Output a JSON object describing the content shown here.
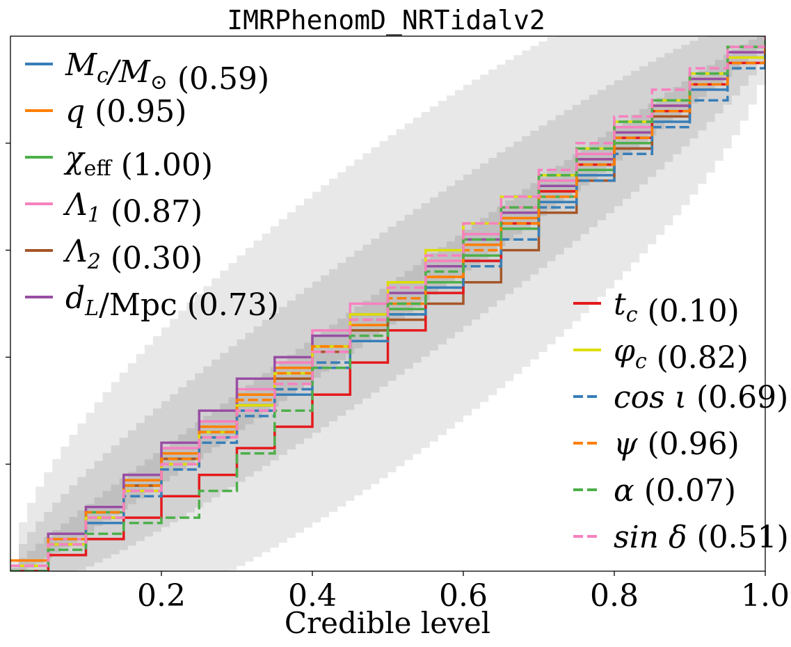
{
  "chart_data": {
    "type": "line",
    "title": "IMRPhenomD_NRTidalv2",
    "xlabel": "Credible level",
    "ylabel": "",
    "xlim": [
      0,
      1
    ],
    "ylim": [
      0,
      1
    ],
    "x_ticks": [
      {
        "value": 0.2,
        "label": "0.2"
      },
      {
        "value": 0.4,
        "label": "0.4"
      },
      {
        "value": 0.6,
        "label": "0.6"
      },
      {
        "value": 0.8,
        "label": "0.8"
      },
      {
        "value": 1.0,
        "label": "1.0"
      }
    ],
    "y_ticks": [
      0.2,
      0.4,
      0.6,
      0.8
    ],
    "grid": false,
    "confidence_bands": [
      {
        "sigma": 1,
        "color": "#bfbfbf",
        "halfwidth_scale": 0.022
      },
      {
        "sigma": 2,
        "color": "#d2d2d2",
        "halfwidth_scale": 0.044
      },
      {
        "sigma": 3,
        "color": "#e8e8e8",
        "halfwidth_scale": 0.066
      }
    ],
    "legends": [
      {
        "placement": "upper-left",
        "entries": [
          {
            "math": "M_c/M_⊙",
            "name_main": "M",
            "name_sub": "c",
            "name_tail": "/M",
            "name_tail_sub": "⊙",
            "pvalue": "(0.59)",
            "color": "#377eb8",
            "dash": "solid"
          },
          {
            "math": "q",
            "name_main": "q",
            "name_sub": "",
            "name_tail": "",
            "name_tail_sub": "",
            "pvalue": "(0.95)",
            "color": "#ff7f00",
            "dash": "solid"
          },
          {
            "math": "χ_eff",
            "name_main": "χ",
            "name_sub": "eff",
            "name_tail": "",
            "name_tail_sub": "",
            "pvalue": "(1.00)",
            "color": "#4daf4a",
            "dash": "solid"
          },
          {
            "math": "Λ_1",
            "name_main": "Λ",
            "name_sub": "1",
            "name_tail": "",
            "name_tail_sub": "",
            "pvalue": "(0.87)",
            "color": "#f781bf",
            "dash": "solid"
          },
          {
            "math": "Λ_2",
            "name_main": "Λ",
            "name_sub": "2",
            "name_tail": "",
            "name_tail_sub": "",
            "pvalue": "(0.30)",
            "color": "#a65628",
            "dash": "solid"
          },
          {
            "math": "d_L/Mpc",
            "name_main": "d",
            "name_sub": "L",
            "name_tail": "/Mpc",
            "name_tail_sub": "",
            "pvalue": "(0.73)",
            "color": "#984ea3",
            "dash": "solid"
          }
        ]
      },
      {
        "placement": "lower-right",
        "entries": [
          {
            "math": "t_c",
            "name_main": "t",
            "name_sub": "c",
            "name_tail": "",
            "name_tail_sub": "",
            "pvalue": "(0.10)",
            "color": "#e41a1c",
            "dash": "solid"
          },
          {
            "math": "φ_c",
            "name_main": "φ",
            "name_sub": "c",
            "name_tail": "",
            "name_tail_sub": "",
            "pvalue": "(0.82)",
            "color": "#dede00",
            "dash": "solid"
          },
          {
            "math": "cos ι",
            "name_main": "cos ι",
            "name_sub": "",
            "name_tail": "",
            "name_tail_sub": "",
            "pvalue": "(0.69)",
            "color": "#377eb8",
            "dash": "dashed"
          },
          {
            "math": "ψ",
            "name_main": "ψ",
            "name_sub": "",
            "name_tail": "",
            "name_tail_sub": "",
            "pvalue": "(0.96)",
            "color": "#ff7f00",
            "dash": "dashed"
          },
          {
            "math": "α",
            "name_main": "α",
            "name_sub": "",
            "name_tail": "",
            "name_tail_sub": "",
            "pvalue": "(0.07)",
            "color": "#4daf4a",
            "dash": "dashed"
          },
          {
            "math": "sin δ",
            "name_main": "sin δ",
            "name_sub": "",
            "name_tail": "",
            "name_tail_sub": "",
            "pvalue": "(0.51)",
            "color": "#f781bf",
            "dash": "dashed"
          }
        ]
      }
    ],
    "series": [
      {
        "name": "M_c/M_⊙",
        "color": "#377eb8",
        "dash": "solid",
        "x": [
          0,
          0.05,
          0.1,
          0.15,
          0.2,
          0.25,
          0.3,
          0.35,
          0.4,
          0.45,
          0.5,
          0.55,
          0.6,
          0.65,
          0.7,
          0.75,
          0.8,
          0.85,
          0.9,
          0.95,
          1
        ],
        "y": [
          0,
          0.05,
          0.09,
          0.15,
          0.2,
          0.25,
          0.3,
          0.33,
          0.38,
          0.43,
          0.48,
          0.53,
          0.58,
          0.64,
          0.69,
          0.74,
          0.79,
          0.84,
          0.9,
          0.96,
          1
        ]
      },
      {
        "name": "q",
        "color": "#ff7f00",
        "dash": "solid",
        "x": [
          0,
          0.05,
          0.1,
          0.15,
          0.2,
          0.25,
          0.3,
          0.35,
          0.4,
          0.45,
          0.5,
          0.55,
          0.6,
          0.65,
          0.7,
          0.75,
          0.8,
          0.85,
          0.9,
          0.95,
          1
        ],
        "y": [
          0.02,
          0.07,
          0.12,
          0.17,
          0.22,
          0.27,
          0.33,
          0.38,
          0.42,
          0.46,
          0.5,
          0.55,
          0.61,
          0.66,
          0.71,
          0.77,
          0.82,
          0.87,
          0.92,
          0.96,
          1
        ]
      },
      {
        "name": "χ_eff",
        "color": "#4daf4a",
        "dash": "solid",
        "x": [
          0,
          0.05,
          0.1,
          0.15,
          0.2,
          0.25,
          0.3,
          0.35,
          0.4,
          0.45,
          0.5,
          0.55,
          0.6,
          0.65,
          0.7,
          0.75,
          0.8,
          0.85,
          0.9,
          0.95,
          1
        ],
        "y": [
          0.01,
          0.06,
          0.11,
          0.16,
          0.21,
          0.26,
          0.31,
          0.36,
          0.41,
          0.45,
          0.49,
          0.54,
          0.59,
          0.64,
          0.7,
          0.75,
          0.8,
          0.86,
          0.91,
          0.96,
          1
        ]
      },
      {
        "name": "Λ_1",
        "color": "#f781bf",
        "dash": "solid",
        "x": [
          0,
          0.05,
          0.1,
          0.15,
          0.2,
          0.25,
          0.3,
          0.35,
          0.4,
          0.45,
          0.5,
          0.55,
          0.6,
          0.65,
          0.7,
          0.75,
          0.8,
          0.85,
          0.9,
          0.95,
          1
        ],
        "y": [
          0.01,
          0.06,
          0.12,
          0.18,
          0.23,
          0.28,
          0.34,
          0.39,
          0.45,
          0.5,
          0.54,
          0.58,
          0.63,
          0.68,
          0.73,
          0.78,
          0.83,
          0.88,
          0.93,
          0.97,
          1
        ]
      },
      {
        "name": "Λ_2",
        "color": "#a65628",
        "dash": "solid",
        "x": [
          0,
          0.05,
          0.1,
          0.15,
          0.2,
          0.25,
          0.3,
          0.35,
          0.4,
          0.45,
          0.5,
          0.55,
          0.6,
          0.65,
          0.7,
          0.75,
          0.8,
          0.85,
          0.9,
          0.95,
          1
        ],
        "y": [
          0,
          0.05,
          0.1,
          0.16,
          0.21,
          0.26,
          0.31,
          0.36,
          0.41,
          0.45,
          0.47,
          0.5,
          0.54,
          0.6,
          0.67,
          0.73,
          0.79,
          0.85,
          0.91,
          0.96,
          1
        ]
      },
      {
        "name": "d_L/Mpc",
        "color": "#984ea3",
        "dash": "solid",
        "x": [
          0,
          0.05,
          0.1,
          0.15,
          0.2,
          0.25,
          0.3,
          0.35,
          0.4,
          0.45,
          0.5,
          0.55,
          0.6,
          0.65,
          0.7,
          0.75,
          0.8,
          0.85,
          0.9,
          0.95,
          1
        ],
        "y": [
          0.01,
          0.07,
          0.12,
          0.18,
          0.24,
          0.3,
          0.36,
          0.4,
          0.44,
          0.48,
          0.52,
          0.57,
          0.62,
          0.67,
          0.72,
          0.77,
          0.82,
          0.87,
          0.92,
          0.97,
          1
        ]
      },
      {
        "name": "t_c",
        "color": "#e41a1c",
        "dash": "solid",
        "x": [
          0,
          0.05,
          0.1,
          0.15,
          0.2,
          0.25,
          0.3,
          0.35,
          0.4,
          0.45,
          0.5,
          0.55,
          0.6,
          0.65,
          0.7,
          0.75,
          0.8,
          0.85,
          0.9,
          0.95,
          1
        ],
        "y": [
          0,
          0.03,
          0.06,
          0.1,
          0.14,
          0.18,
          0.23,
          0.27,
          0.33,
          0.39,
          0.45,
          0.52,
          0.58,
          0.65,
          0.71,
          0.76,
          0.81,
          0.86,
          0.91,
          0.95,
          1
        ]
      },
      {
        "name": "φ_c",
        "color": "#dede00",
        "dash": "solid",
        "x": [
          0,
          0.05,
          0.1,
          0.15,
          0.2,
          0.25,
          0.3,
          0.35,
          0.4,
          0.45,
          0.5,
          0.55,
          0.6,
          0.65,
          0.7,
          0.75,
          0.8,
          0.85,
          0.9,
          0.95,
          1
        ],
        "y": [
          0.01,
          0.05,
          0.1,
          0.15,
          0.2,
          0.26,
          0.31,
          0.37,
          0.42,
          0.48,
          0.54,
          0.6,
          0.65,
          0.7,
          0.74,
          0.79,
          0.84,
          0.88,
          0.93,
          0.96,
          1
        ]
      },
      {
        "name": "cos ι",
        "color": "#377eb8",
        "dash": "dashed",
        "x": [
          0,
          0.05,
          0.1,
          0.15,
          0.2,
          0.25,
          0.3,
          0.35,
          0.4,
          0.45,
          0.5,
          0.55,
          0.6,
          0.65,
          0.7,
          0.75,
          0.8,
          0.85,
          0.9,
          0.95,
          1
        ],
        "y": [
          0,
          0.04,
          0.09,
          0.14,
          0.19,
          0.24,
          0.29,
          0.34,
          0.39,
          0.43,
          0.48,
          0.53,
          0.57,
          0.62,
          0.68,
          0.73,
          0.78,
          0.83,
          0.88,
          0.94,
          1
        ]
      },
      {
        "name": "ψ",
        "color": "#ff7f00",
        "dash": "dashed",
        "x": [
          0,
          0.05,
          0.1,
          0.15,
          0.2,
          0.25,
          0.3,
          0.35,
          0.4,
          0.45,
          0.5,
          0.55,
          0.6,
          0.65,
          0.7,
          0.75,
          0.8,
          0.85,
          0.9,
          0.95,
          1
        ],
        "y": [
          0.01,
          0.06,
          0.11,
          0.16,
          0.21,
          0.26,
          0.32,
          0.37,
          0.42,
          0.47,
          0.51,
          0.55,
          0.6,
          0.65,
          0.7,
          0.76,
          0.81,
          0.86,
          0.91,
          0.95,
          1
        ]
      },
      {
        "name": "α",
        "color": "#4daf4a",
        "dash": "dashed",
        "x": [
          0,
          0.05,
          0.1,
          0.15,
          0.2,
          0.25,
          0.3,
          0.35,
          0.4,
          0.45,
          0.5,
          0.55,
          0.6,
          0.65,
          0.7,
          0.75,
          0.8,
          0.85,
          0.9,
          0.95,
          1
        ],
        "y": [
          0,
          0.04,
          0.07,
          0.09,
          0.1,
          0.15,
          0.22,
          0.3,
          0.38,
          0.44,
          0.5,
          0.56,
          0.62,
          0.68,
          0.74,
          0.79,
          0.84,
          0.88,
          0.93,
          0.98,
          1
        ]
      },
      {
        "name": "sin δ",
        "color": "#f781bf",
        "dash": "dashed",
        "x": [
          0,
          0.05,
          0.1,
          0.15,
          0.2,
          0.25,
          0.3,
          0.35,
          0.4,
          0.45,
          0.5,
          0.55,
          0.6,
          0.65,
          0.7,
          0.75,
          0.8,
          0.85,
          0.9,
          0.95,
          1
        ],
        "y": [
          0.01,
          0.05,
          0.1,
          0.15,
          0.2,
          0.25,
          0.3,
          0.35,
          0.41,
          0.47,
          0.53,
          0.59,
          0.65,
          0.7,
          0.75,
          0.8,
          0.85,
          0.9,
          0.94,
          0.98,
          1
        ]
      }
    ]
  }
}
